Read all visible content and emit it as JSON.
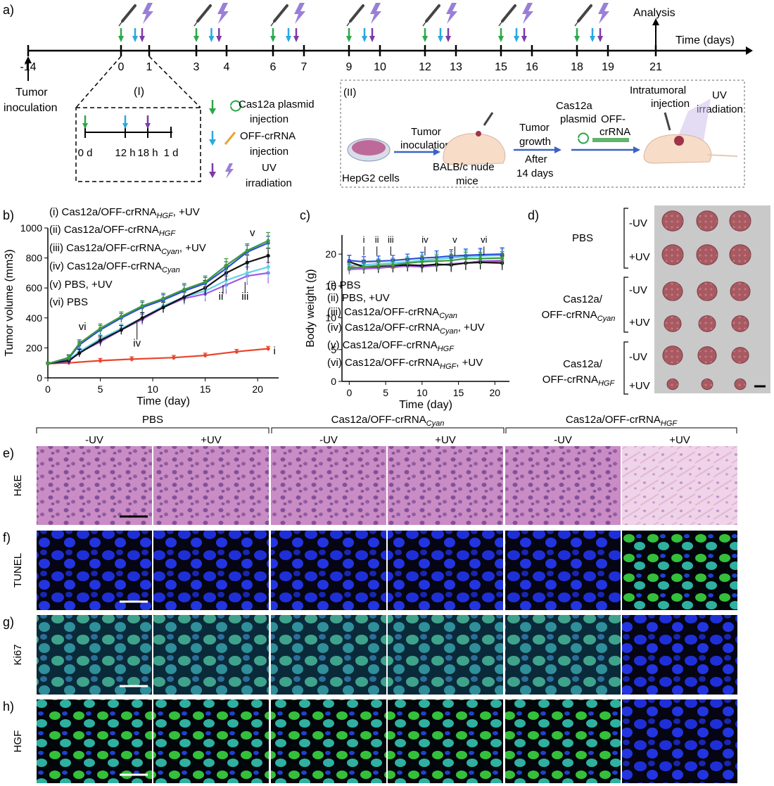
{
  "panel_a": {
    "label": "a)",
    "timeline_ticks": [
      "-14",
      "0",
      "1",
      "3",
      "4",
      "6",
      "7",
      "9",
      "10",
      "12",
      "13",
      "15",
      "16",
      "18",
      "19",
      "21"
    ],
    "time_axis_label": "Time (days)",
    "analysis_label": "Analysis",
    "tumor_inoculation_label": [
      "Tumor",
      "inoculation"
    ],
    "inset_I": {
      "label": "(I)",
      "ticks": [
        "0 d",
        "12 h",
        "18 h",
        "1 d"
      ]
    },
    "legend": {
      "cas12a": [
        "Cas12a plasmid",
        "injection"
      ],
      "crrna": [
        "OFF-crRNA",
        "injection"
      ],
      "uv": [
        "UV",
        "irradiation"
      ]
    },
    "inset_II": {
      "label": "(II)",
      "hepg2": "HepG2 cells",
      "tumor_inoculation": [
        "Tumor",
        "inoculation"
      ],
      "mice": [
        "BALB/c nude",
        "mice"
      ],
      "growth": [
        "Tumor",
        "growth"
      ],
      "after": [
        "After",
        "14 days"
      ],
      "cas12a": [
        "Cas12a",
        "plasmid"
      ],
      "offcrrna": [
        "OFF-",
        "crRNA"
      ],
      "intratumoral": [
        "Intratumoral",
        "injection"
      ],
      "uv": [
        "UV",
        "irradiation"
      ]
    },
    "colors": {
      "green": "#2aa84a",
      "cyan": "#27a9e1",
      "purple": "#7c3aa8",
      "uv": "#9a7fd8"
    }
  },
  "panel_b": {
    "label": "b)",
    "legend": [
      {
        "roman": "(i)",
        "text": "Cas12a/OFF-crRNA",
        "sub": "HGF",
        "suffix": ", +UV"
      },
      {
        "roman": "(ii)",
        "text": "Cas12a/OFF-crRNA",
        "sub": "HGF",
        "suffix": ""
      },
      {
        "roman": "(iii)",
        "text": "Cas12a/OFF-crRNA",
        "sub": "Cyan",
        "suffix": ", +UV"
      },
      {
        "roman": "(iv)",
        "text": "Cas12a/OFF-crRNA",
        "sub": "Cyan",
        "suffix": ""
      },
      {
        "roman": "(v)",
        "text": "PBS, +UV",
        "sub": "",
        "suffix": ""
      },
      {
        "roman": "(vi)",
        "text": "PBS",
        "sub": "",
        "suffix": ""
      }
    ],
    "curve_labels": [
      "i",
      "ii",
      "iii",
      "iv",
      "v",
      "vi"
    ]
  },
  "panel_c": {
    "label": "c)",
    "legend": [
      {
        "roman": "(i)",
        "text": "PBS",
        "sub": "",
        "suffix": ""
      },
      {
        "roman": "(ii)",
        "text": "PBS, +UV",
        "sub": "",
        "suffix": ""
      },
      {
        "roman": "(iii)",
        "text": "Cas12a/OFF-crRNA",
        "sub": "Cyan",
        "suffix": ""
      },
      {
        "roman": "(iv)",
        "text": "Cas12a/OFF-crRNA",
        "sub": "Cyan",
        "suffix": ", +UV"
      },
      {
        "roman": "(v)",
        "text": "Cas12a/OFF-crRNA",
        "sub": "HGF",
        "suffix": ""
      },
      {
        "roman": "(vi)",
        "text": "Cas12a/OFF-crRNA",
        "sub": "HGF",
        "suffix": ", +UV"
      }
    ],
    "curve_labels": [
      "i",
      "ii",
      "iii",
      "iv",
      "v",
      "vi"
    ]
  },
  "panel_d": {
    "label": "d)",
    "groups": [
      {
        "name": [
          "PBS"
        ],
        "sub": ""
      },
      {
        "name": [
          "Cas12a/",
          "OFF-crRNA"
        ],
        "sub": "Cyan"
      },
      {
        "name": [
          "Cas12a/",
          "OFF-crRNA"
        ],
        "sub": "HGF"
      }
    ],
    "uv_labels": [
      "-UV",
      "+UV"
    ]
  },
  "panel_efgh": {
    "labels": [
      "e)",
      "f)",
      "g)",
      "h)"
    ],
    "row_names": [
      "H&E",
      "TUNEL",
      "Ki67",
      "HGF"
    ],
    "group_headers": [
      {
        "text": "PBS",
        "sub": ""
      },
      {
        "text": "Cas12a/OFF-crRNA",
        "sub": "Cyan"
      },
      {
        "text": "Cas12a/OFF-crRNA",
        "sub": "HGF"
      }
    ],
    "uv_labels": [
      "-UV",
      "+UV"
    ]
  },
  "chart_data": [
    {
      "type": "line",
      "xlabel": "Time (day)",
      "ylabel": "Tumor volume (mm3)",
      "xlim": [
        0,
        22
      ],
      "ylim": [
        0,
        1000
      ],
      "xticks": [
        0,
        5,
        10,
        15,
        20
      ],
      "yticks": [
        0,
        200,
        400,
        600,
        800,
        1000
      ],
      "series": [
        {
          "name": "(i) Cas12a/OFF-crRNA HGF, +UV",
          "color": "#e8452c",
          "x": [
            0,
            2,
            5,
            8,
            12,
            15,
            18,
            21
          ],
          "y": [
            95,
            100,
            115,
            125,
            135,
            150,
            175,
            195
          ],
          "err": [
            10,
            10,
            15,
            15,
            15,
            15,
            15,
            15
          ]
        },
        {
          "name": "(ii) Cas12a/OFF-crRNA HGF",
          "color": "#a259e6",
          "x": [
            0,
            2,
            3,
            5,
            7,
            9,
            11,
            13,
            15,
            17,
            19,
            21
          ],
          "y": [
            95,
            110,
            170,
            240,
            320,
            390,
            470,
            530,
            560,
            620,
            680,
            700
          ],
          "err": [
            10,
            20,
            25,
            30,
            30,
            35,
            35,
            40,
            50,
            60,
            60,
            70
          ]
        },
        {
          "name": "(iii) Cas12a/OFF-crRNA Cyan, +UV",
          "color": "#5fd3e8",
          "x": [
            0,
            2,
            3,
            5,
            7,
            9,
            11,
            13,
            15,
            17,
            19,
            21
          ],
          "y": [
            95,
            120,
            175,
            260,
            330,
            400,
            480,
            540,
            580,
            650,
            700,
            740
          ],
          "err": [
            10,
            20,
            25,
            30,
            30,
            35,
            35,
            40,
            50,
            60,
            60,
            70
          ]
        },
        {
          "name": "(iv) Cas12a/OFF-crRNA Cyan",
          "color": "#111111",
          "x": [
            0,
            2,
            3,
            5,
            7,
            9,
            11,
            13,
            15,
            17,
            19,
            21
          ],
          "y": [
            95,
            115,
            165,
            250,
            320,
            400,
            470,
            540,
            600,
            700,
            770,
            815
          ],
          "err": [
            10,
            20,
            25,
            30,
            30,
            35,
            35,
            40,
            50,
            50,
            50,
            50
          ]
        },
        {
          "name": "(v) PBS, +UV",
          "color": "#2f4fd8",
          "x": [
            0,
            2,
            3,
            5,
            7,
            9,
            11,
            13,
            15,
            17,
            19,
            21
          ],
          "y": [
            95,
            130,
            220,
            320,
            400,
            470,
            520,
            580,
            630,
            730,
            840,
            900
          ],
          "err": [
            10,
            20,
            25,
            30,
            30,
            35,
            35,
            40,
            40,
            45,
            45,
            45
          ]
        },
        {
          "name": "(vi) PBS",
          "color": "#3f9a3f",
          "x": [
            0,
            2,
            3,
            5,
            7,
            9,
            11,
            13,
            15,
            17,
            19,
            21
          ],
          "y": [
            95,
            135,
            230,
            330,
            410,
            480,
            530,
            590,
            640,
            750,
            850,
            915
          ],
          "err": [
            10,
            20,
            25,
            30,
            30,
            35,
            35,
            40,
            40,
            45,
            45,
            55
          ]
        }
      ]
    },
    {
      "type": "line",
      "xlabel": "Time (day)",
      "ylabel": "Body weight (g)",
      "xlim": [
        -1,
        22
      ],
      "ylim": [
        0,
        23
      ],
      "xticks": [
        0,
        5,
        10,
        15,
        20
      ],
      "yticks": [
        0,
        5,
        10,
        15,
        20
      ],
      "series": [
        {
          "name": "(i) PBS",
          "color": "#e8452c",
          "x": [
            0,
            2,
            4,
            6,
            8,
            10,
            12,
            14,
            16,
            18,
            21
          ],
          "y": [
            18.0,
            17.8,
            18.0,
            17.9,
            18.2,
            18.0,
            18.3,
            18.4,
            18.6,
            18.8,
            18.9
          ],
          "err": [
            0.8,
            0.8,
            0.8,
            0.8,
            0.8,
            0.9,
            1.0,
            1.0,
            1.0,
            1.0,
            1.0
          ]
        },
        {
          "name": "(ii) PBS, +UV",
          "color": "#a259e6",
          "x": [
            0,
            2,
            4,
            6,
            8,
            10,
            12,
            14,
            16,
            18,
            21
          ],
          "y": [
            17.6,
            17.7,
            17.8,
            18.0,
            18.1,
            18.0,
            18.2,
            18.5,
            18.6,
            18.9,
            19.0
          ],
          "err": [
            0.8,
            0.8,
            0.8,
            0.8,
            0.8,
            0.9,
            1.0,
            1.0,
            1.0,
            1.0,
            1.0
          ]
        },
        {
          "name": "(iii) Cas12a/OFF-crRNA Cyan",
          "color": "#5fd3e8",
          "x": [
            0,
            2,
            4,
            6,
            8,
            10,
            12,
            14,
            16,
            18,
            21
          ],
          "y": [
            18.2,
            18.3,
            18.5,
            18.6,
            18.8,
            19.0,
            19.2,
            19.4,
            19.6,
            19.7,
            19.8
          ],
          "err": [
            0.8,
            0.8,
            0.8,
            0.8,
            0.8,
            0.9,
            1.0,
            1.0,
            1.0,
            1.0,
            1.0
          ]
        },
        {
          "name": "(iv) Cas12a/OFF-crRNA Cyan, +UV",
          "color": "#111111",
          "x": [
            0,
            2,
            4,
            6,
            8,
            10,
            12,
            14,
            16,
            18,
            21
          ],
          "y": [
            18.8,
            18.0,
            18.1,
            18.2,
            18.3,
            18.2,
            18.4,
            18.3,
            18.6,
            18.7,
            18.6
          ],
          "err": [
            1.0,
            1.0,
            1.0,
            1.0,
            1.0,
            1.0,
            1.1,
            1.1,
            1.1,
            1.1,
            1.1
          ]
        },
        {
          "name": "(v) Cas12a/OFF-crRNA HGF",
          "color": "#2f4fd8",
          "x": [
            0,
            2,
            4,
            6,
            8,
            10,
            12,
            14,
            16,
            18,
            21
          ],
          "y": [
            19.0,
            18.8,
            18.9,
            19.0,
            19.2,
            19.4,
            19.5,
            19.7,
            19.8,
            19.9,
            20.0
          ],
          "err": [
            0.8,
            0.8,
            0.8,
            0.8,
            0.8,
            0.9,
            1.0,
            1.0,
            1.0,
            1.0,
            1.0
          ]
        },
        {
          "name": "(vi) Cas12a/OFF-crRNA HGF, +UV",
          "color": "#3f9a3f",
          "x": [
            0,
            2,
            4,
            6,
            8,
            10,
            12,
            14,
            16,
            18,
            21
          ],
          "y": [
            17.8,
            18.0,
            18.2,
            18.3,
            18.6,
            18.8,
            18.9,
            19.0,
            19.3,
            19.3,
            19.4
          ],
          "err": [
            0.8,
            0.8,
            0.8,
            0.8,
            0.8,
            0.9,
            1.0,
            1.0,
            1.0,
            1.0,
            1.0
          ]
        }
      ]
    }
  ]
}
